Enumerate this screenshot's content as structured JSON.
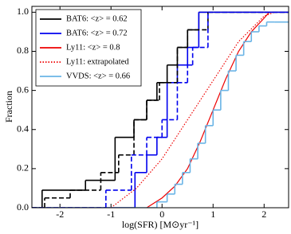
{
  "chart_data": {
    "type": "line",
    "xlabel": "log(SFR) [M⊙yr⁻¹]",
    "ylabel": "Fraction",
    "xlim": [
      -2.55,
      2.48
    ],
    "ylim": [
      0,
      1.03
    ],
    "xticks": [
      -2,
      -1,
      0,
      1,
      2
    ],
    "yticks": [
      {
        "value": 0,
        "label": "0.0"
      },
      0.2,
      0.4,
      0.6,
      0.8,
      {
        "value": 1,
        "label": "1.0"
      }
    ],
    "legend": "upper left",
    "series": [
      {
        "name": "BAT6: <z> = 0.62",
        "color": "#000000",
        "style": "step",
        "dash": "solid",
        "x": [
          -2.55,
          -2.35,
          -1.5,
          -0.92,
          -0.55,
          -0.3,
          -0.1,
          0.1,
          0.3,
          0.5,
          0.72
        ],
        "values": [
          0,
          0.09,
          0.14,
          0.36,
          0.45,
          0.55,
          0.64,
          0.73,
          0.82,
          0.91,
          1.0
        ]
      },
      {
        "name": "BAT6: <z> = 0.72",
        "color": "#0000ee",
        "style": "step",
        "dash": "solid",
        "x": [
          -2.55,
          -0.53,
          -0.3,
          -0.1,
          0.1,
          0.3,
          0.5,
          0.72
        ],
        "values": [
          0,
          0.18,
          0.27,
          0.36,
          0.64,
          0.73,
          0.82,
          1.0
        ]
      },
      {
        "name": "Ly11: <z> = 0.8",
        "color": "#ee0000",
        "style": "line",
        "dash": "solid",
        "x": [
          -0.3,
          0,
          0.25,
          0.5,
          0.75,
          1.0,
          1.25,
          1.5,
          1.75,
          2.0,
          2.1
        ],
        "values": [
          0,
          0.05,
          0.11,
          0.2,
          0.34,
          0.5,
          0.66,
          0.8,
          0.9,
          0.97,
          1.0
        ]
      },
      {
        "name": "Ly11: extrapolated",
        "color": "#ee0000",
        "style": "line",
        "dash": "dotted",
        "x": [
          -1.0,
          -0.5,
          0,
          0.5,
          1.0,
          1.5,
          2.0,
          2.2
        ],
        "values": [
          0,
          0.1,
          0.25,
          0.45,
          0.65,
          0.85,
          0.98,
          1.0
        ]
      },
      {
        "name": "VVDS: <z> = 0.66",
        "color": "#6ab4e6",
        "style": "step",
        "dash": "solid",
        "x": [
          -2.55,
          -0.1,
          0.1,
          0.25,
          0.4,
          0.55,
          0.7,
          0.85,
          1.0,
          1.15,
          1.3,
          1.45,
          1.6,
          1.75,
          1.9,
          2.05,
          2.2
        ],
        "values": [
          0,
          0.03,
          0.07,
          0.12,
          0.18,
          0.25,
          0.33,
          0.42,
          0.5,
          0.6,
          0.7,
          0.78,
          0.85,
          0.9,
          0.93,
          0.95,
          0.95
        ]
      },
      {
        "color": "#000000",
        "style": "step",
        "dash": "dashed",
        "x": [
          -2.55,
          -2.3,
          -1.8,
          -1.2,
          -0.85,
          -0.55,
          -0.3,
          -0.05,
          0.3,
          0.5,
          0.9
        ],
        "values": [
          0,
          0.05,
          0.09,
          0.18,
          0.27,
          0.45,
          0.55,
          0.64,
          0.82,
          0.91,
          1.0
        ]
      },
      {
        "color": "#0000ee",
        "style": "step",
        "dash": "dashed",
        "x": [
          -2.55,
          -1.1,
          -0.6,
          -0.3,
          0,
          0.3,
          0.5,
          0.6,
          0.9
        ],
        "values": [
          0,
          0.09,
          0.27,
          0.36,
          0.45,
          0.64,
          0.73,
          0.82,
          1.0
        ]
      }
    ]
  }
}
